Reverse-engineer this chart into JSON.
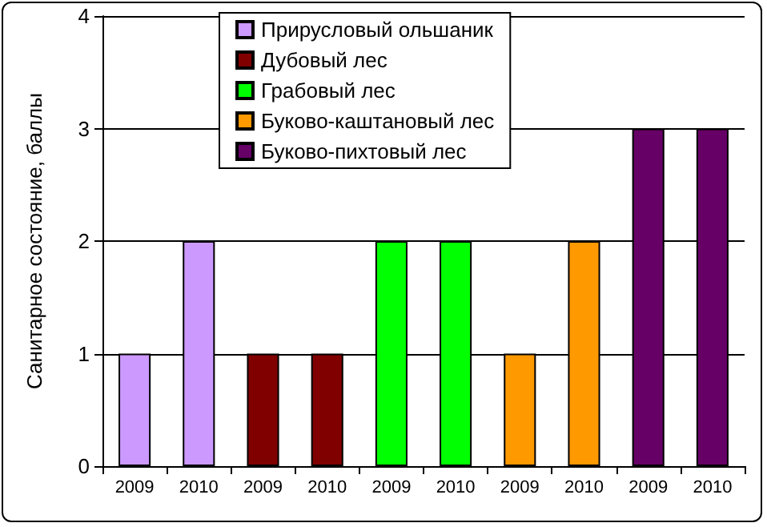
{
  "chart_data": {
    "type": "bar",
    "ylabel": "Санитарное состояние, баллы",
    "categories": [
      "2009",
      "2010",
      "2009",
      "2010",
      "2009",
      "2010",
      "2009",
      "2010",
      "2009",
      "2010"
    ],
    "series": [
      {
        "name": "Прирусловый ольшаник",
        "color": "#cc99ff",
        "values": [
          1,
          2,
          null,
          null,
          null,
          null,
          null,
          null,
          null,
          null
        ]
      },
      {
        "name": "Дубовый лес",
        "color": "#800000",
        "values": [
          null,
          null,
          1,
          1,
          null,
          null,
          null,
          null,
          null,
          null
        ]
      },
      {
        "name": "Грабовый лес",
        "color": "#00ff00",
        "values": [
          null,
          null,
          null,
          null,
          2,
          2,
          null,
          null,
          null,
          null
        ]
      },
      {
        "name": "Буково-каштановый лес",
        "color": "#ff9900",
        "values": [
          null,
          null,
          null,
          null,
          null,
          null,
          1,
          2,
          null,
          null
        ]
      },
      {
        "name": "Буково-пихтовый лес",
        "color": "#660066",
        "values": [
          null,
          null,
          null,
          null,
          null,
          null,
          null,
          null,
          3,
          3
        ]
      }
    ],
    "ylim": [
      0,
      4
    ],
    "yticks": [
      0,
      1,
      2,
      3,
      4
    ],
    "grid": "y",
    "legend": "top"
  }
}
